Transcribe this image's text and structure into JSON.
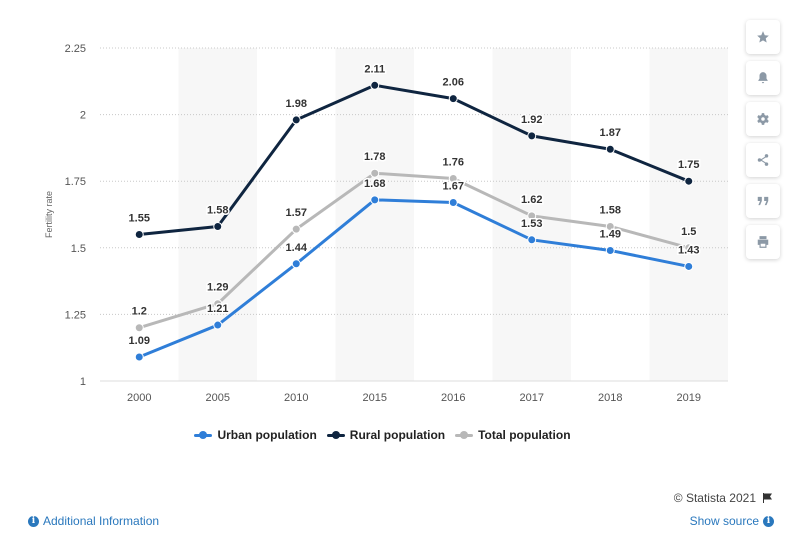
{
  "chart_data": {
    "type": "line",
    "categories": [
      "2000",
      "2005",
      "2010",
      "2015",
      "2016",
      "2017",
      "2018",
      "2019"
    ],
    "series": [
      {
        "name": "Urban population",
        "color": "#2f7ed8",
        "values": [
          1.09,
          1.21,
          1.44,
          1.68,
          1.67,
          1.53,
          1.49,
          1.43
        ]
      },
      {
        "name": "Rural population",
        "color": "#0f2540",
        "values": [
          1.55,
          1.58,
          1.98,
          2.11,
          2.06,
          1.92,
          1.87,
          1.75
        ]
      },
      {
        "name": "Total population",
        "color": "#b8b8b8",
        "values": [
          1.2,
          1.29,
          1.57,
          1.78,
          1.76,
          1.62,
          1.58,
          1.5
        ]
      }
    ],
    "ylabel": "Fertility rate",
    "ylim": [
      1,
      2.25
    ],
    "yticks": [
      "1",
      "1.25",
      "1.5",
      "1.75",
      "2",
      "2.25"
    ],
    "grid": "horizontal dotted",
    "legend_position": "bottom"
  },
  "toolbar": {
    "icons": [
      "star-icon",
      "bell-icon",
      "gear-icon",
      "share-icon",
      "quote-icon",
      "print-icon"
    ]
  },
  "footer": {
    "credit": "© Statista 2021",
    "additional_info": "Additional Information",
    "show_source": "Show source"
  }
}
